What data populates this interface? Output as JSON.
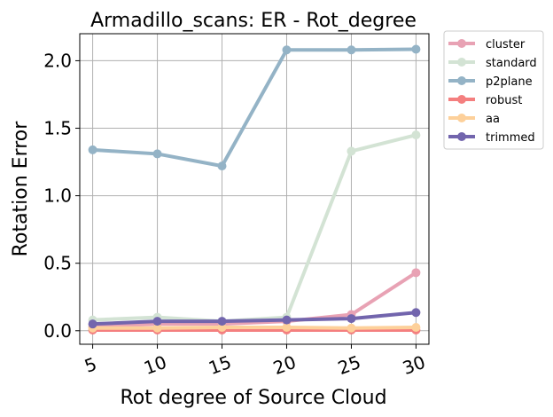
{
  "chart_data": {
    "type": "line",
    "title": "Armadillo_scans: ER - Rot_degree",
    "xlabel": "Rot degree of Source Cloud",
    "ylabel": "Rotation Error",
    "x": [
      5,
      10,
      15,
      20,
      25,
      30
    ],
    "x_ticks": [
      "5",
      "10",
      "15",
      "20",
      "25",
      "30"
    ],
    "y_ticks": [
      "0.0",
      "0.5",
      "1.0",
      "1.5",
      "2.0"
    ],
    "xlim": [
      4,
      31
    ],
    "ylim": [
      -0.1,
      2.2
    ],
    "grid": true,
    "legend_position": "outside-top-right",
    "series": [
      {
        "name": "cluster",
        "color": "#e8a2b4",
        "values": [
          0.03,
          0.05,
          0.05,
          0.07,
          0.12,
          0.43
        ]
      },
      {
        "name": "standard",
        "color": "#d3e3d4",
        "values": [
          0.08,
          0.1,
          0.07,
          0.1,
          1.33,
          1.45
        ]
      },
      {
        "name": "p2plane",
        "color": "#94b3c6",
        "values": [
          1.34,
          1.31,
          1.22,
          2.08,
          2.08,
          2.085
        ]
      },
      {
        "name": "robust",
        "color": "#f47f7f",
        "values": [
          0.005,
          0.005,
          0.005,
          0.005,
          0.005,
          0.005
        ]
      },
      {
        "name": "aa",
        "color": "#fdd09a",
        "values": [
          0.02,
          0.02,
          0.025,
          0.025,
          0.02,
          0.025
        ]
      },
      {
        "name": "trimmed",
        "color": "#7265ad",
        "values": [
          0.05,
          0.07,
          0.07,
          0.08,
          0.09,
          0.135
        ]
      }
    ]
  }
}
